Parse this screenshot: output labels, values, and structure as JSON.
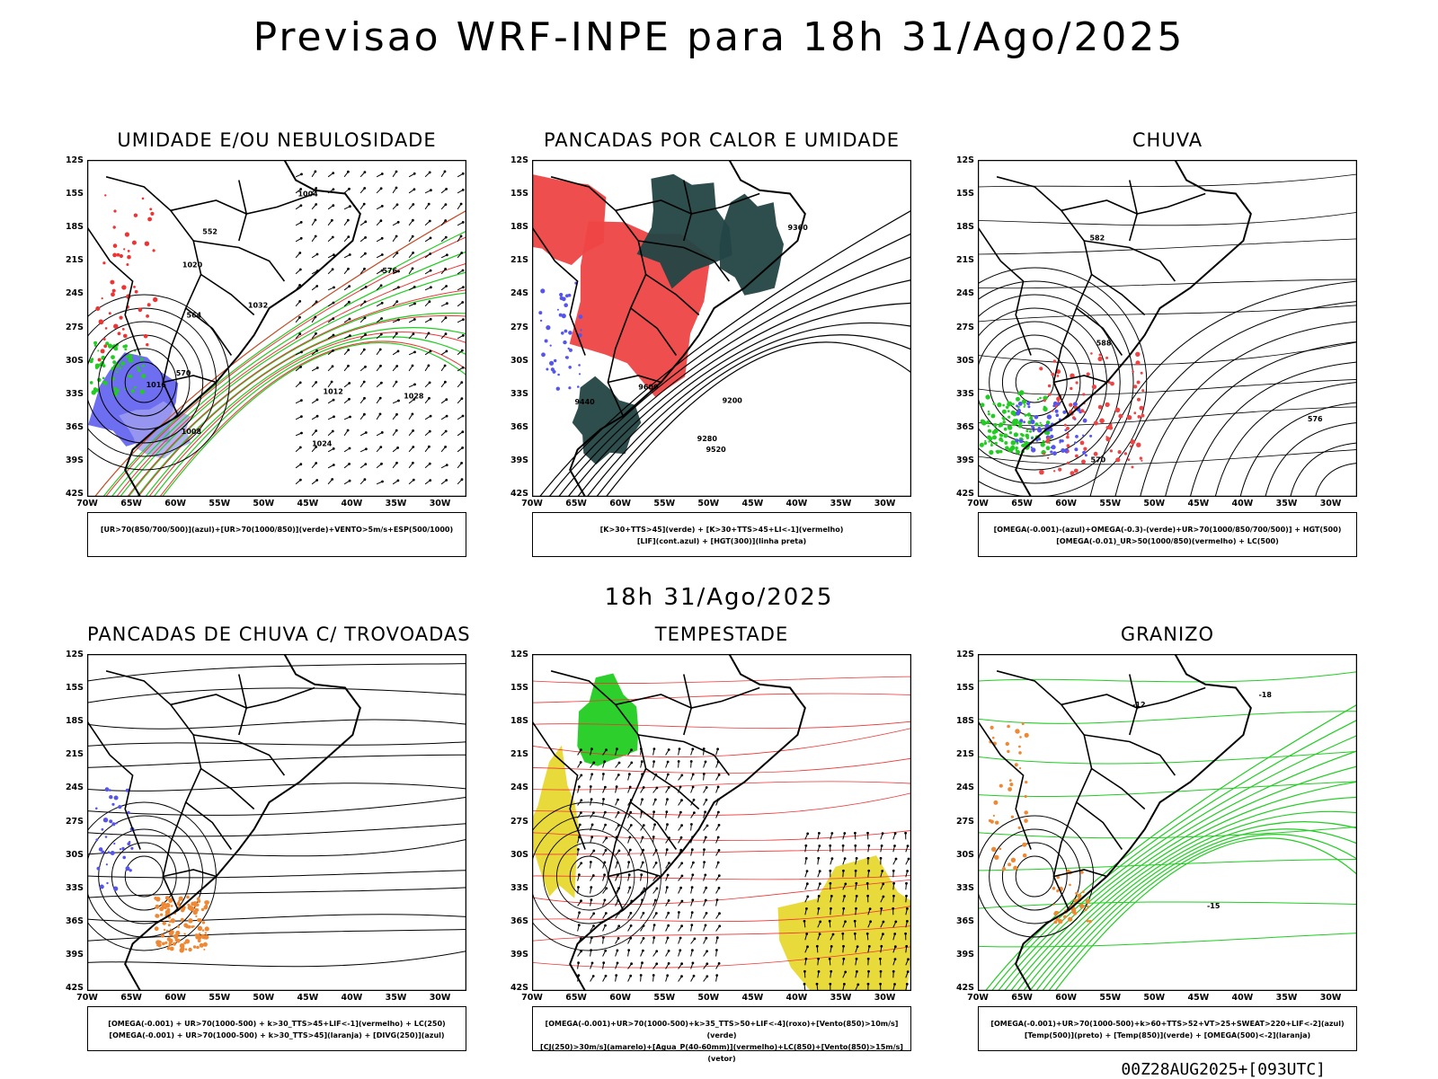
{
  "header": {
    "title": "Previsao WRF-INPE  para 18h 31/Ago/2025",
    "mid_label": "18h 31/Ago/2025",
    "footer": "00Z28AUG2025+[093UTC]"
  },
  "axes": {
    "lat_ticks": [
      "12S",
      "15S",
      "18S",
      "21S",
      "24S",
      "27S",
      "30S",
      "33S",
      "36S",
      "39S",
      "42S"
    ],
    "lon_ticks": [
      "70W",
      "65W",
      "60W",
      "55W",
      "50W",
      "45W",
      "40W",
      "35W",
      "30W"
    ]
  },
  "panels": [
    {
      "title": "UMIDADE E/OU NEBULOSIDADE",
      "legend_lines": [
        "[UR>70(850/700/500)](azul)+[UR>70(1000/850)](verde)+VENTO>5m/s+ESP(500/1000)"
      ],
      "contour_labels": [
        "1008",
        "1012",
        "1016",
        "1020",
        "1024",
        "1028",
        "1032",
        "1004",
        "564",
        "570",
        "576",
        "552"
      ]
    },
    {
      "title": "PANCADAS POR CALOR E UMIDADE",
      "legend_lines": [
        "[K>30+TTS>45](verde) + [K>30+TTS>45+LI<-1](vermelho)",
        "[LIF](cont.azul) + [HGT(300)](linha preta)"
      ],
      "contour_labels": [
        "9600",
        "9520",
        "9440",
        "9360",
        "9280",
        "9200"
      ]
    },
    {
      "title": "CHUVA",
      "legend_lines": [
        "[OMEGA(-0.001)-(azul)+OMEGA(-0.3)-(verde)+UR>70(1000/850/700/500)] + HGT(500)",
        "[OMEGA(-0.01)_UR>50(1000/850)(vermelho) + LC(500)"
      ],
      "contour_labels": [
        "588",
        "582",
        "576",
        "570"
      ]
    },
    {
      "title": "PANCADAS DE CHUVA C/ TROVOADAS",
      "legend_lines": [
        "[OMEGA(-0.001) + UR>70(1000-500) + k>30_TTS>45+LIF<-1](vermelho) + LC(250)",
        "[OMEGA(-0.001) + UR>70(1000-500) + k>30_TTS>45](laranja) + [DIVG(250)](azul)"
      ],
      "contour_labels": []
    },
    {
      "title": "TEMPESTADE",
      "legend_lines": [
        "[OMEGA(-0.001)+UR>70(1000-500)+k>35_TTS>50+LIF<-4](roxo)+[Vento(850)>10m/s](verde)",
        "[CJ(250)>30m/s](amarelo)+[Agua_P(40-60mm)](vermelho)+LC(850)+[Vento(850)>15m/s](vetor)"
      ],
      "contour_labels": []
    },
    {
      "title": "GRANIZO",
      "legend_lines": [
        "[OMEGA(-0.001)+UR>70(1000-500)+k>60+TTS>52+VT>25+SWEAT>220+LIF<-2](azul)",
        "[Temp(500)](preto) + [Temp(850)](verde) + [OMEGA(500)<-2](laranja)"
      ],
      "contour_labels": [
        "-12",
        "-15",
        "-18"
      ]
    }
  ],
  "colors": {
    "humidity_blue": "#5555ee",
    "humidity_green": "#22cc22",
    "instab_red": "#ee4444",
    "dark_green": "#234545",
    "orange": "#ee8833",
    "yellow": "#e8d832",
    "contour_red": "#ee3333"
  }
}
